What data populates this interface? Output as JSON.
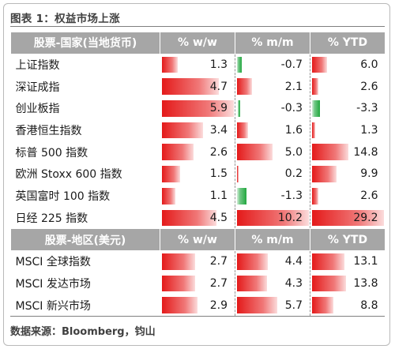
{
  "title": "图表 1：权益市场上涨",
  "source": "数据来源：Bloomberg，钧山",
  "colors": {
    "positive": "#e41a1a",
    "negative": "#22a73f",
    "header": "#a6a6a6"
  },
  "sections": [
    {
      "headers": [
        "股票-国家(当地货币)",
        "% w/w",
        "% m/m",
        "% YTD"
      ],
      "rows": [
        {
          "label": "上证指数",
          "values": [
            1.3,
            -0.7,
            6.0
          ],
          "display": [
            "1.3",
            "-0.7",
            "6.0"
          ]
        },
        {
          "label": "深证成指",
          "values": [
            4.7,
            2.1,
            2.6
          ],
          "display": [
            "4.7",
            "2.1",
            "2.6"
          ]
        },
        {
          "label": "创业板指",
          "values": [
            5.9,
            -0.3,
            -3.3
          ],
          "display": [
            "5.9",
            "-0.3",
            "-3.3"
          ]
        },
        {
          "label": "香港恒生指数",
          "values": [
            3.4,
            1.6,
            1.3
          ],
          "display": [
            "3.4",
            "1.6",
            "1.3"
          ]
        },
        {
          "label": "标普 500 指数",
          "values": [
            2.6,
            5.0,
            14.8
          ],
          "display": [
            "2.6",
            "5.0",
            "14.8"
          ]
        },
        {
          "label": "欧洲 Stoxx 600 指数",
          "values": [
            1.5,
            0.2,
            9.9
          ],
          "display": [
            "1.5",
            "0.2",
            "9.9"
          ]
        },
        {
          "label": "英国富时 100 指数",
          "values": [
            1.1,
            -1.3,
            2.6
          ],
          "display": [
            "1.1",
            "-1.3",
            "2.6"
          ]
        },
        {
          "label": "日经 225 指数",
          "values": [
            4.5,
            10.2,
            29.2
          ],
          "display": [
            "4.5",
            "10.2",
            "29.2"
          ]
        }
      ]
    },
    {
      "headers": [
        "股票-地区(美元)",
        "% w/w",
        "% m/m",
        "% YTD"
      ],
      "rows": [
        {
          "label": "MSCI 全球指数",
          "values": [
            2.7,
            4.4,
            13.1
          ],
          "display": [
            "2.7",
            "4.4",
            "13.1"
          ]
        },
        {
          "label": "MSCI 发达市场",
          "values": [
            2.7,
            4.3,
            13.8
          ],
          "display": [
            "2.7",
            "4.3",
            "13.8"
          ]
        },
        {
          "label": "MSCI 新兴市场",
          "values": [
            2.9,
            5.7,
            8.8
          ],
          "display": [
            "2.9",
            "5.7",
            "8.8"
          ]
        }
      ]
    }
  ]
}
